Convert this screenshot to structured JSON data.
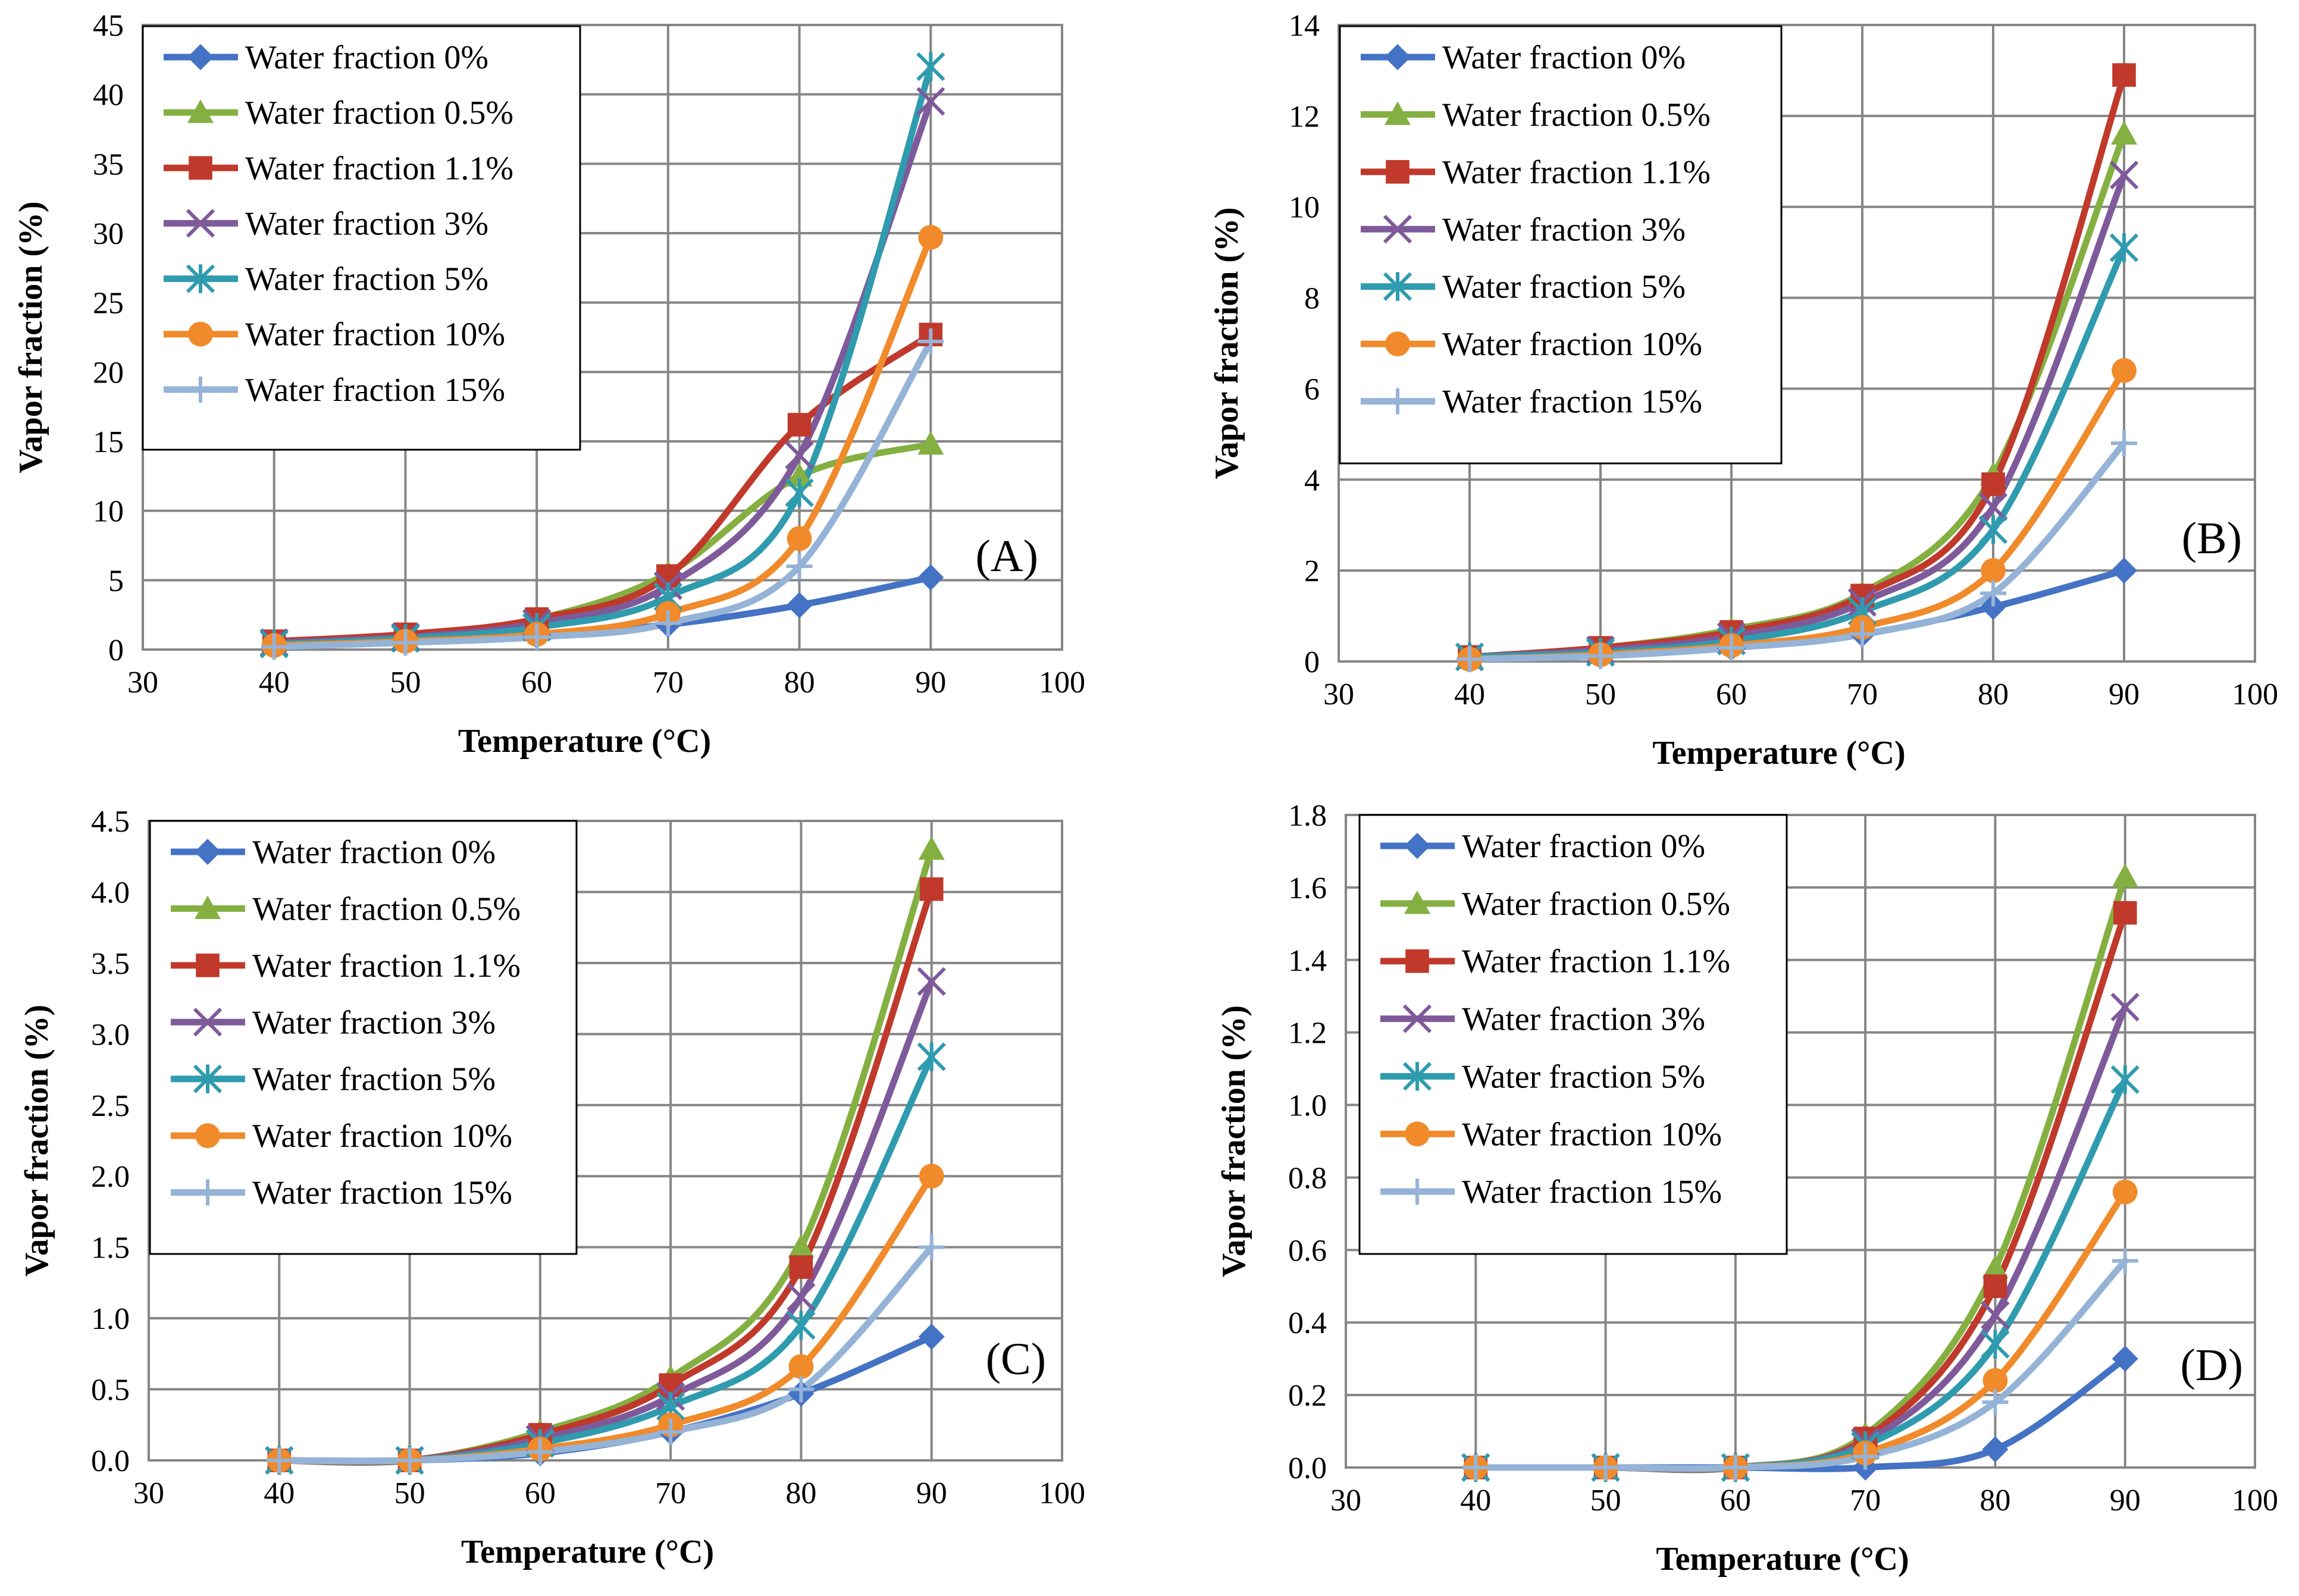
{
  "figure": {
    "description_label": "Vapor fraction vs temperature, four panels"
  },
  "colors": {
    "Water fraction 0%": "#4472C4",
    "Water fraction 0.5%": "#84B041",
    "Water fraction 1.1%": "#C0392B",
    "Water fraction 3%": "#7E5A9B",
    "Water fraction 5%": "#2F9BAE",
    "Water fraction 10%": "#F08A2A",
    "Water fraction 15%": "#95B3D7"
  },
  "markers": {
    "Water fraction 0%": "diamond",
    "Water fraction 0.5%": "triangle",
    "Water fraction 1.1%": "square",
    "Water fraction 3%": "x",
    "Water fraction 5%": "star",
    "Water fraction 10%": "circle",
    "Water fraction 15%": "plus"
  },
  "chart_data": [
    {
      "type": "line",
      "panel": "(A)",
      "title": "",
      "xlabel": "Temperature (°C)",
      "ylabel": "Vapor fraction (%)",
      "xlim": [
        30,
        100
      ],
      "ylim": [
        0,
        45
      ],
      "xticks": [
        30,
        40,
        50,
        60,
        70,
        80,
        90,
        100
      ],
      "xtick_labels": [
        "30",
        "40",
        "50",
        "60",
        "70",
        "80",
        "90",
        "100"
      ],
      "yticks": [
        0,
        5,
        10,
        15,
        20,
        25,
        30,
        35,
        40,
        45
      ],
      "ytick_labels": [
        "0",
        "5",
        "10",
        "15",
        "20",
        "25",
        "30",
        "35",
        "40",
        "45"
      ],
      "legend_position": "top-left",
      "x": [
        40,
        50,
        60,
        70,
        80,
        90
      ],
      "series": [
        {
          "name": "Water fraction 0%",
          "values": [
            0.3,
            0.6,
            1.0,
            1.8,
            3.2,
            5.2
          ]
        },
        {
          "name": "Water fraction 0.5%",
          "values": [
            0.6,
            1.1,
            2.2,
            5.5,
            12.5,
            14.8
          ]
        },
        {
          "name": "Water fraction 1.1%",
          "values": [
            0.6,
            1.1,
            2.2,
            5.3,
            16.2,
            22.7
          ]
        },
        {
          "name": "Water fraction 3%",
          "values": [
            0.5,
            0.9,
            1.9,
            4.6,
            14.0,
            39.5
          ]
        },
        {
          "name": "Water fraction 5%",
          "values": [
            0.4,
            0.8,
            1.6,
            3.8,
            11.3,
            42.0
          ]
        },
        {
          "name": "Water fraction 10%",
          "values": [
            0.3,
            0.6,
            1.1,
            2.6,
            8.0,
            29.7
          ]
        },
        {
          "name": "Water fraction 15%",
          "values": [
            0.2,
            0.5,
            0.9,
            1.9,
            6.0,
            22.2
          ]
        }
      ]
    },
    {
      "type": "line",
      "panel": "(B)",
      "title": "",
      "xlabel": "Temperature (°C)",
      "ylabel": "Vapor fraction (%)",
      "xlim": [
        30,
        100
      ],
      "ylim": [
        0,
        14
      ],
      "xticks": [
        30,
        40,
        50,
        60,
        70,
        80,
        90,
        100
      ],
      "xtick_labels": [
        "30",
        "40",
        "50",
        "60",
        "70",
        "80",
        "90",
        "100"
      ],
      "yticks": [
        0,
        2,
        4,
        6,
        8,
        10,
        12,
        14
      ],
      "ytick_labels": [
        "0",
        "2",
        "4",
        "6",
        "8",
        "10",
        "12",
        "14"
      ],
      "legend_position": "top-left",
      "x": [
        40,
        50,
        60,
        70,
        80,
        90
      ],
      "series": [
        {
          "name": "Water fraction 0%",
          "values": [
            0.05,
            0.12,
            0.3,
            0.6,
            1.2,
            2.0
          ]
        },
        {
          "name": "Water fraction 0.5%",
          "values": [
            0.1,
            0.3,
            0.7,
            1.5,
            4.1,
            11.6
          ]
        },
        {
          "name": "Water fraction 1.1%",
          "values": [
            0.1,
            0.3,
            0.65,
            1.45,
            3.9,
            12.9
          ]
        },
        {
          "name": "Water fraction 3%",
          "values": [
            0.1,
            0.25,
            0.55,
            1.3,
            3.4,
            10.7
          ]
        },
        {
          "name": "Water fraction 5%",
          "values": [
            0.1,
            0.2,
            0.45,
            1.1,
            2.9,
            9.1
          ]
        },
        {
          "name": "Water fraction 10%",
          "values": [
            0.05,
            0.15,
            0.35,
            0.75,
            2.0,
            6.4
          ]
        },
        {
          "name": "Water fraction 15%",
          "values": [
            0.05,
            0.12,
            0.3,
            0.6,
            1.5,
            4.8
          ]
        }
      ]
    },
    {
      "type": "line",
      "panel": "(C)",
      "title": "",
      "xlabel": "Temperature (°C)",
      "ylabel": "Vapor fraction (%)",
      "xlim": [
        30,
        100
      ],
      "ylim": [
        0,
        4.5
      ],
      "xticks": [
        30,
        40,
        50,
        60,
        70,
        80,
        90,
        100
      ],
      "xtick_labels": [
        "30",
        "40",
        "50",
        "60",
        "70",
        "80",
        "90",
        "100"
      ],
      "yticks": [
        0,
        0.5,
        1,
        1.5,
        2,
        2.5,
        3,
        3.5,
        4,
        4.5
      ],
      "ytick_labels": [
        "0.0",
        "0.5",
        "1.0",
        "1.5",
        "2.0",
        "2.5",
        "3.0",
        "3.5",
        "4.0",
        "4.5"
      ],
      "legend_position": "top-left",
      "x": [
        40,
        50,
        60,
        70,
        80,
        90
      ],
      "series": [
        {
          "name": "Water fraction 0%",
          "values": [
            0,
            0,
            0.05,
            0.2,
            0.47,
            0.87
          ]
        },
        {
          "name": "Water fraction 0.5%",
          "values": [
            0,
            0,
            0.2,
            0.58,
            1.5,
            4.3
          ]
        },
        {
          "name": "Water fraction 1.1%",
          "values": [
            0,
            0,
            0.18,
            0.53,
            1.36,
            4.02
          ]
        },
        {
          "name": "Water fraction 3%",
          "values": [
            0,
            0,
            0.15,
            0.45,
            1.15,
            3.37
          ]
        },
        {
          "name": "Water fraction 5%",
          "values": [
            0,
            0,
            0.12,
            0.38,
            0.95,
            2.84
          ]
        },
        {
          "name": "Water fraction 10%",
          "values": [
            0,
            0,
            0.08,
            0.25,
            0.66,
            2.0
          ]
        },
        {
          "name": "Water fraction 15%",
          "values": [
            0,
            0,
            0.06,
            0.2,
            0.5,
            1.5
          ]
        }
      ]
    },
    {
      "type": "line",
      "panel": "(D)",
      "title": "",
      "xlabel": "Temperature (°C)",
      "ylabel": "Vapor fraction (%)",
      "xlim": [
        30,
        100
      ],
      "ylim": [
        0,
        1.8
      ],
      "xticks": [
        30,
        40,
        50,
        60,
        70,
        80,
        90,
        100
      ],
      "xtick_labels": [
        "30",
        "40",
        "50",
        "60",
        "70",
        "80",
        "90",
        "100"
      ],
      "yticks": [
        0,
        0.2,
        0.4,
        0.6,
        0.8,
        1.0,
        1.2,
        1.4,
        1.6,
        1.8
      ],
      "ytick_labels": [
        "0.0",
        "0.2",
        "0.4",
        "0.6",
        "0.8",
        "1.0",
        "1.2",
        "1.4",
        "1.6",
        "1.8"
      ],
      "legend_position": "top-left",
      "x": [
        40,
        50,
        60,
        70,
        80,
        90
      ],
      "series": [
        {
          "name": "Water fraction 0%",
          "values": [
            0,
            0,
            0,
            0,
            0.05,
            0.3
          ]
        },
        {
          "name": "Water fraction 0.5%",
          "values": [
            0,
            0,
            0,
            0.09,
            0.55,
            1.63
          ]
        },
        {
          "name": "Water fraction 1.1%",
          "values": [
            0,
            0,
            0,
            0.08,
            0.5,
            1.53
          ]
        },
        {
          "name": "Water fraction 3%",
          "values": [
            0,
            0,
            0,
            0.07,
            0.42,
            1.27
          ]
        },
        {
          "name": "Water fraction 5%",
          "values": [
            0,
            0,
            0,
            0.06,
            0.34,
            1.07
          ]
        },
        {
          "name": "Water fraction 10%",
          "values": [
            0,
            0,
            0,
            0.04,
            0.24,
            0.76
          ]
        },
        {
          "name": "Water fraction 15%",
          "values": [
            0,
            0,
            0,
            0.03,
            0.18,
            0.57
          ]
        }
      ]
    }
  ]
}
